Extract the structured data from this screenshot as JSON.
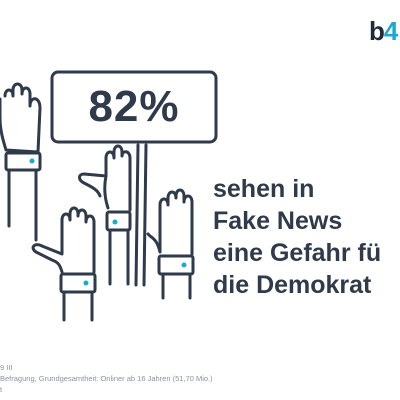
{
  "brand": {
    "logo_prefix": "b",
    "logo_accent": "4"
  },
  "headline_stat": "82%",
  "headline_lines": [
    "sehen in",
    "Fake News",
    "eine Gefahr fü",
    "die Demokrat"
  ],
  "footnote_lines": [
    "9 III",
    "Befragung, Grundgesamtheit: Onliner ab 16 Jahren (51,70 Mio.)",
    "t"
  ],
  "colors": {
    "primary": "#2f3a4a",
    "accent": "#1ba8d1",
    "muted": "#8a94a0"
  },
  "icons": [
    "raised-hand-icon",
    "protest-sign-icon"
  ]
}
